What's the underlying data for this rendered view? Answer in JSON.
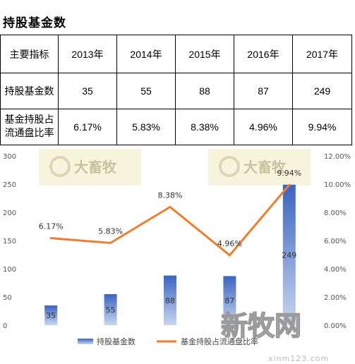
{
  "header": {
    "title": "持股基金数"
  },
  "table": {
    "col_header_label": "主要指标",
    "years": [
      "2013年",
      "2014年",
      "2015年",
      "2016年",
      "2017年"
    ],
    "rows": [
      {
        "label": "持股基金数",
        "values": [
          "35",
          "55",
          "88",
          "87",
          "249"
        ]
      },
      {
        "label_line1": "基金持股占",
        "label_line2": "流通盘比率",
        "values": [
          "6.17%",
          "5.83%",
          "8.38%",
          "4.96%",
          "9.94%"
        ]
      }
    ]
  },
  "watermarks": {
    "brand": "大畜牧",
    "logo_text": "新牧网",
    "url": "xinm123.com"
  },
  "chart_data": {
    "type": "bar",
    "categories": [
      "2013年",
      "2014年",
      "2015年",
      "2016年",
      "2017年"
    ],
    "series": [
      {
        "name": "持股基金数",
        "type": "bar",
        "axis": "left",
        "values": [
          35,
          55,
          88,
          87,
          249
        ],
        "labels": [
          "35",
          "55",
          "88",
          "87",
          "249"
        ],
        "color": "#4472c4"
      },
      {
        "name": "基金持股占流通盘比率",
        "type": "line",
        "axis": "right",
        "values": [
          6.17,
          5.83,
          8.38,
          4.96,
          9.94
        ],
        "labels": [
          "6.17%",
          "5.83%",
          "8.38%",
          "4.96%",
          "9.94%"
        ],
        "color": "#ed7d31"
      }
    ],
    "y_left": {
      "min": 0,
      "max": 300,
      "ticks": [
        "0",
        "50",
        "100",
        "150",
        "200",
        "250",
        "300"
      ]
    },
    "y_right": {
      "min": 0,
      "max": 12,
      "ticks": [
        "0.00%",
        "2.00%",
        "4.00%",
        "6.00%",
        "8.00%",
        "10.00%",
        "12.00%"
      ]
    },
    "legend_position": "bottom",
    "grid": false
  }
}
